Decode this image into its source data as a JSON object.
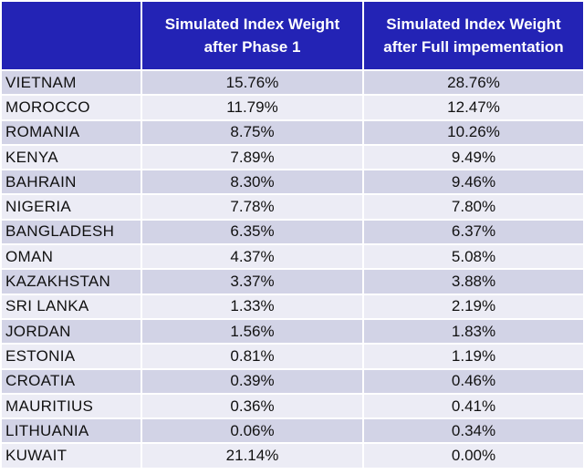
{
  "header": {
    "col1": "",
    "col2_line1": "Simulated Index Weight",
    "col2_line2": "after Phase 1",
    "col3_line1": "Simulated Index Weight",
    "col3_line2": "after Full impementation"
  },
  "colors": {
    "header_bg": "#2323b5",
    "row_odd": "#d2d3e6",
    "row_even": "#ececf5"
  },
  "chart_data": {
    "type": "table",
    "columns": [
      "",
      "Simulated Index Weight after Phase 1",
      "Simulated Index Weight after Full impementation"
    ],
    "rows": [
      {
        "country": "VIETNAM",
        "phase1": "15.76%",
        "full": "28.76%"
      },
      {
        "country": "MOROCCO",
        "phase1": "11.79%",
        "full": "12.47%"
      },
      {
        "country": "ROMANIA",
        "phase1": "8.75%",
        "full": "10.26%"
      },
      {
        "country": "KENYA",
        "phase1": "7.89%",
        "full": "9.49%"
      },
      {
        "country": "BAHRAIN",
        "phase1": "8.30%",
        "full": "9.46%"
      },
      {
        "country": "NIGERIA",
        "phase1": "7.78%",
        "full": "7.80%"
      },
      {
        "country": "BANGLADESH",
        "phase1": "6.35%",
        "full": "6.37%"
      },
      {
        "country": "OMAN",
        "phase1": "4.37%",
        "full": "5.08%"
      },
      {
        "country": "KAZAKHSTAN",
        "phase1": "3.37%",
        "full": "3.88%"
      },
      {
        "country": "SRI LANKA",
        "phase1": "1.33%",
        "full": "2.19%"
      },
      {
        "country": "JORDAN",
        "phase1": "1.56%",
        "full": "1.83%"
      },
      {
        "country": "ESTONIA",
        "phase1": "0.81%",
        "full": "1.19%"
      },
      {
        "country": "CROATIA",
        "phase1": "0.39%",
        "full": "0.46%"
      },
      {
        "country": "MAURITIUS",
        "phase1": "0.36%",
        "full": "0.41%"
      },
      {
        "country": "LITHUANIA",
        "phase1": "0.06%",
        "full": "0.34%"
      },
      {
        "country": "KUWAIT",
        "phase1": "21.14%",
        "full": "0.00%"
      }
    ]
  }
}
